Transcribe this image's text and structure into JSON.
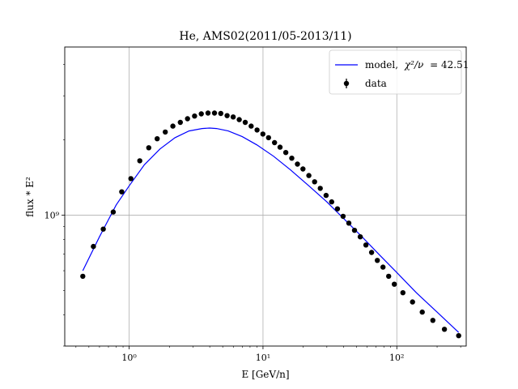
{
  "chart_data": {
    "type": "scatter",
    "title": "He, AMS02(2011/05-2013/11)",
    "xlabel": "E [GeV/n]",
    "ylabel": "flux * E²",
    "x_scale": "log",
    "y_scale": "log",
    "xlim": [
      0.33,
      330
    ],
    "ylim": [
      300000000,
      4700000000
    ],
    "x_ticks": [
      {
        "value": 1,
        "label": "10⁰"
      },
      {
        "value": 10,
        "label": "10¹"
      },
      {
        "value": 100,
        "label": "10²"
      }
    ],
    "y_ticks": [
      {
        "value": 1000000000,
        "label": "10⁹"
      }
    ],
    "grid": true,
    "legend_position": "top-right",
    "legend": {
      "model_label_prefix": "model,",
      "model_label_symbol": "χ²/ν",
      "model_label_value": "= 42.51",
      "data_label": "data"
    },
    "colors": {
      "model": "#0000ff",
      "data": "#000000",
      "grid": "#b0b0b0"
    },
    "series": [
      {
        "name": "data",
        "style": "points",
        "x": [
          0.45,
          0.54,
          0.64,
          0.76,
          0.88,
          1.03,
          1.2,
          1.4,
          1.62,
          1.86,
          2.12,
          2.41,
          2.73,
          3.08,
          3.46,
          3.88,
          4.34,
          4.84,
          5.39,
          5.99,
          6.65,
          7.37,
          8.16,
          9.03,
          9.98,
          11.0,
          12.2,
          13.4,
          14.8,
          16.4,
          18.1,
          19.9,
          22.0,
          24.3,
          26.8,
          29.6,
          32.6,
          36.0,
          39.7,
          43.8,
          48.3,
          53.3,
          58.8,
          64.8,
          71.5,
          78.8,
          86.9,
          95.8,
          111.0,
          131.0,
          155.0,
          186.0,
          227.0,
          290.0
        ],
        "y": [
          570000000,
          750000000,
          880000000,
          1030000000,
          1240000000,
          1400000000,
          1650000000,
          1860000000,
          2020000000,
          2150000000,
          2270000000,
          2350000000,
          2430000000,
          2490000000,
          2540000000,
          2560000000,
          2560000000,
          2550000000,
          2500000000,
          2470000000,
          2410000000,
          2350000000,
          2270000000,
          2190000000,
          2110000000,
          2040000000,
          1950000000,
          1870000000,
          1780000000,
          1690000000,
          1600000000,
          1530000000,
          1440000000,
          1360000000,
          1280000000,
          1200000000,
          1130000000,
          1060000000,
          990000000,
          930000000,
          870000000,
          820000000,
          760000000,
          710000000,
          660000000,
          620000000,
          570000000,
          530000000,
          490000000,
          450000000,
          410000000,
          380000000,
          350000000,
          330000000
        ]
      },
      {
        "name": "model",
        "style": "line",
        "x": [
          0.45,
          0.6,
          0.8,
          1.0,
          1.3,
          1.7,
          2.2,
          2.8,
          3.5,
          4.0,
          4.5,
          5.5,
          7.0,
          9.0,
          12.0,
          16.0,
          22.0,
          30.0,
          40.0,
          55.0,
          75.0,
          100.0,
          140.0,
          200.0,
          290.0
        ],
        "y": [
          600000000,
          820000000,
          1100000000,
          1310000000,
          1590000000,
          1840000000,
          2040000000,
          2170000000,
          2220000000,
          2230000000,
          2220000000,
          2170000000,
          2060000000,
          1910000000,
          1720000000,
          1520000000,
          1310000000,
          1130000000,
          970000000,
          820000000,
          690000000,
          590000000,
          490000000,
          410000000,
          340000000
        ]
      }
    ]
  }
}
